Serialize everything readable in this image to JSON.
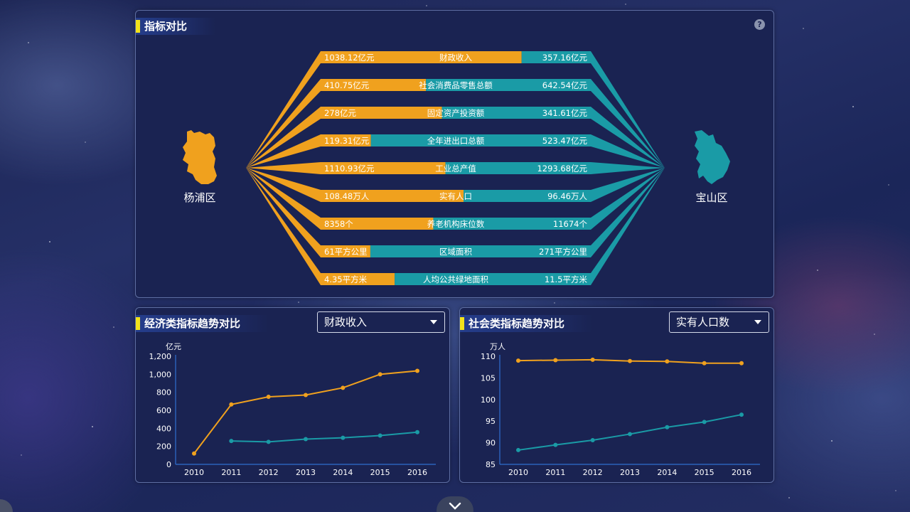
{
  "colors": {
    "left": "#f0a11e",
    "right": "#1a9ba6",
    "panel": "#1a2352",
    "accent": "#f2e21a"
  },
  "comparison": {
    "title": "指标对比",
    "help_icon": "?",
    "left_region": "杨浦区",
    "right_region": "宝山区",
    "rows": [
      {
        "label": "财政收入",
        "left": "1038.12亿元",
        "right": "357.16亿元",
        "left_share": 0.744
      },
      {
        "label": "社会消费品零售总额",
        "left": "410.75亿元",
        "right": "642.54亿元",
        "left_share": 0.39
      },
      {
        "label": "固定资产投资额",
        "left": "278亿元",
        "right": "341.61亿元",
        "left_share": 0.449
      },
      {
        "label": "全年进出口总额",
        "left": "119.31亿元",
        "right": "523.47亿元",
        "left_share": 0.186
      },
      {
        "label": "工业总产值",
        "left": "1110.93亿元",
        "right": "1293.68亿元",
        "left_share": 0.462
      },
      {
        "label": "实有人口",
        "left": "108.48万人",
        "right": "96.46万人",
        "left_share": 0.529
      },
      {
        "label": "养老机构床位数",
        "left": "8358个",
        "right": "11674个",
        "left_share": 0.417
      },
      {
        "label": "区域面积",
        "left": "61平方公里",
        "right": "271平方公里",
        "left_share": 0.184
      },
      {
        "label": "人均公共绿地面积",
        "left": "4.35平方米",
        "right": "11.5平方米",
        "left_share": 0.274
      }
    ]
  },
  "econ": {
    "title": "经济类指标趋势对比",
    "dropdown_value": "财政收入"
  },
  "social": {
    "title": "社会类指标趋势对比",
    "dropdown_value": "实有人口数"
  },
  "chart_data": [
    {
      "type": "line",
      "title": "",
      "ylabel": "亿元",
      "categories": [
        "2010",
        "2011",
        "2012",
        "2013",
        "2014",
        "2015",
        "2016"
      ],
      "ylim": [
        0,
        1200
      ],
      "yticks": [
        "0",
        "200",
        "400",
        "600",
        "800",
        "1,000",
        "1,200"
      ],
      "series": [
        {
          "color": "#f0a11e",
          "values": [
            120,
            665,
            750,
            770,
            850,
            1000,
            1038
          ]
        },
        {
          "color": "#1a9ba6",
          "values": [
            null,
            260,
            250,
            280,
            295,
            320,
            357
          ]
        }
      ]
    },
    {
      "type": "line",
      "title": "",
      "ylabel": "万人",
      "categories": [
        "2010",
        "2011",
        "2012",
        "2013",
        "2014",
        "2015",
        "2016"
      ],
      "ylim": [
        85,
        110
      ],
      "yticks": [
        "85",
        "90",
        "95",
        "100",
        "105",
        "110"
      ],
      "series": [
        {
          "color": "#f0a11e",
          "values": [
            109.0,
            109.1,
            109.2,
            108.9,
            108.8,
            108.4,
            108.4
          ]
        },
        {
          "color": "#1a9ba6",
          "values": [
            88.3,
            89.5,
            90.6,
            92.0,
            93.6,
            94.8,
            96.5
          ]
        }
      ]
    }
  ]
}
